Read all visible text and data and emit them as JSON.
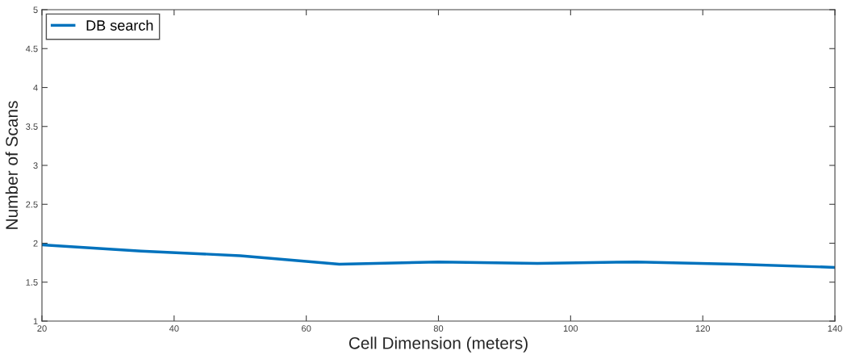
{
  "chart_data": {
    "type": "line",
    "xlabel": "Cell Dimension (meters)",
    "ylabel": "Number of Scans",
    "x": [
      20,
      35,
      50,
      65,
      80,
      95,
      110,
      125,
      140
    ],
    "series": [
      {
        "name": "DB search",
        "color": "#0072bd",
        "values": [
          1.98,
          1.9,
          1.84,
          1.73,
          1.76,
          1.74,
          1.76,
          1.73,
          1.69
        ]
      }
    ],
    "xlim": [
      20,
      140
    ],
    "xticks": [
      20,
      40,
      60,
      80,
      100,
      120,
      140
    ],
    "ylim": [
      1,
      5
    ],
    "yticks": [
      1,
      1.5,
      2,
      2.5,
      3,
      3.5,
      4,
      4.5,
      5
    ],
    "grid": false,
    "legend": "top left",
    "marker": "none",
    "line_style": "solid"
  }
}
